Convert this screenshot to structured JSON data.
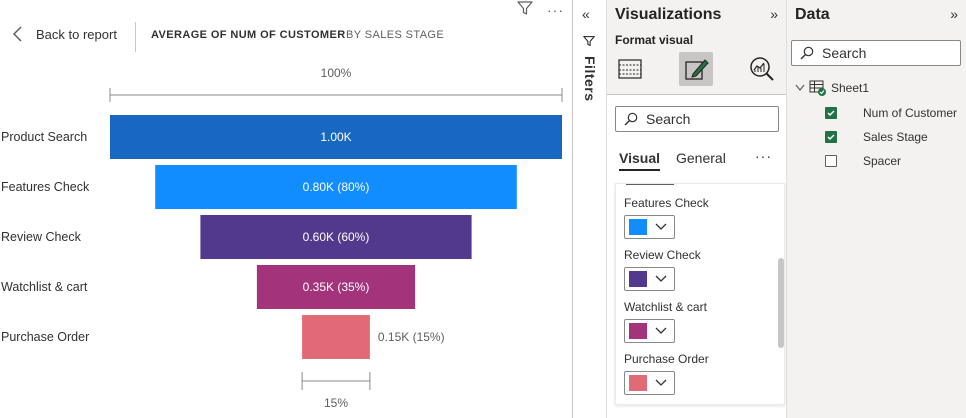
{
  "canvas": {
    "back_label": "Back to report",
    "title": "AVERAGE OF NUM OF CUSTOMER",
    "subtitle": "BY SALES STAGE",
    "more_label": "···"
  },
  "chart_data": {
    "type": "funnel",
    "title": "AVERAGE OF NUM OF CUSTOMER",
    "subtitle": "BY SALES STAGE",
    "categories": [
      "Product Search",
      "Features Check",
      "Review Check",
      "Watchlist & cart",
      "Purchase Order"
    ],
    "values": [
      1.0,
      0.8,
      0.6,
      0.35,
      0.15
    ],
    "percents": [
      100,
      80,
      60,
      35,
      15
    ],
    "data_labels": [
      "1.00K",
      "0.80K (80%)",
      "0.60K (60%)",
      "0.35K (35%)",
      "0.15K (15%)"
    ],
    "unit": "K",
    "colors": [
      "#1867c0",
      "#118dff",
      "#53398e",
      "#a3337b",
      "#e06b77"
    ],
    "top_percent_label": "100%",
    "bottom_percent_label": "15%"
  },
  "filters": {
    "label": "Filters"
  },
  "visualizations": {
    "title": "Visualizations",
    "format_label": "Format visual",
    "search_placeholder": "Search",
    "tabs": [
      {
        "label": "Visual"
      },
      {
        "label": "General"
      }
    ],
    "more_label": "···",
    "color_items": [
      {
        "label": "Features Check",
        "color": "#118dff"
      },
      {
        "label": "Review Check",
        "color": "#53398e"
      },
      {
        "label": "Watchlist & cart",
        "color": "#a3337b"
      },
      {
        "label": "Purchase Order",
        "color": "#e06b77"
      }
    ]
  },
  "data_pane": {
    "title": "Data",
    "search_placeholder": "Search",
    "table_name": "Sheet1",
    "fields": [
      {
        "label": "Num of Customer",
        "checked": true
      },
      {
        "label": "Sales Stage",
        "checked": true
      },
      {
        "label": "Spacer",
        "checked": false
      }
    ]
  }
}
